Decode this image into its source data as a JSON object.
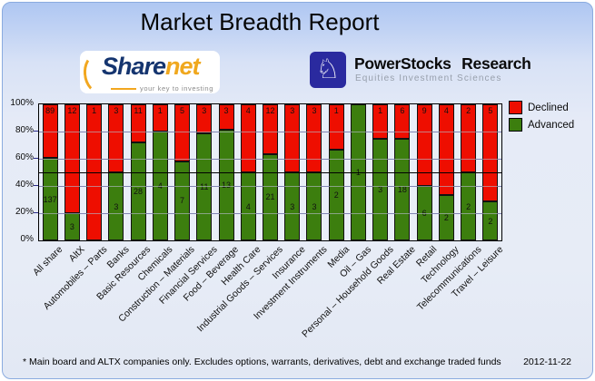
{
  "title": "Market Breadth Report",
  "logos": {
    "sharenet": {
      "name_part1": "Share",
      "name_part2": "net",
      "tagline": "your key to investing"
    },
    "powerstocks": {
      "icon": "chess-knight-icon",
      "icon_glyph": "♘",
      "name": "PowerStocks Research",
      "tagline": "Equities Investment Sciences"
    }
  },
  "chart_data": {
    "type": "bar",
    "stacked": true,
    "stacking": "percent",
    "title": "Market Breadth Report",
    "categories": [
      "All share",
      "AltX",
      "Automobiles – Parts",
      "Banks",
      "Basic Resources",
      "Chemicals",
      "Construction – Materials",
      "Financial Services",
      "Food – Beverage",
      "Health Care",
      "Industrial Goods – Services",
      "Insurance",
      "Investment Instruments",
      "Media",
      "Oil – Gas",
      "Personal – Household Goods",
      "Real Estate",
      "Retail",
      "Technology",
      "Telecommunications",
      "Travel – Leisure"
    ],
    "series": [
      {
        "name": "Declined",
        "color": "#ee0e00",
        "values": [
          89,
          12,
          1,
          3,
          11,
          1,
          5,
          3,
          3,
          4,
          12,
          3,
          3,
          1,
          0,
          1,
          6,
          9,
          4,
          2,
          5
        ]
      },
      {
        "name": "Advanced",
        "color": "#3c7e0e",
        "values": [
          137,
          3,
          0,
          3,
          28,
          4,
          7,
          11,
          13,
          4,
          21,
          3,
          3,
          2,
          1,
          3,
          18,
          6,
          2,
          2,
          2
        ]
      }
    ],
    "y_ticks": [
      "100%",
      "80%",
      "60%",
      "40%",
      "20%",
      "0%"
    ],
    "y_tick_values": [
      100,
      80,
      60,
      40,
      20,
      0
    ],
    "ylim": [
      0,
      100
    ],
    "gridline_values": [
      80,
      60,
      40,
      20
    ],
    "reference_line_pct": 50,
    "legend_position": "right",
    "bar_value_labels_shown": true
  },
  "footer": {
    "note": "* Main board and ALTX companies only. Excludes options, warrants, derivatives, debt and exchange traded funds",
    "date": "2012-11-22"
  }
}
